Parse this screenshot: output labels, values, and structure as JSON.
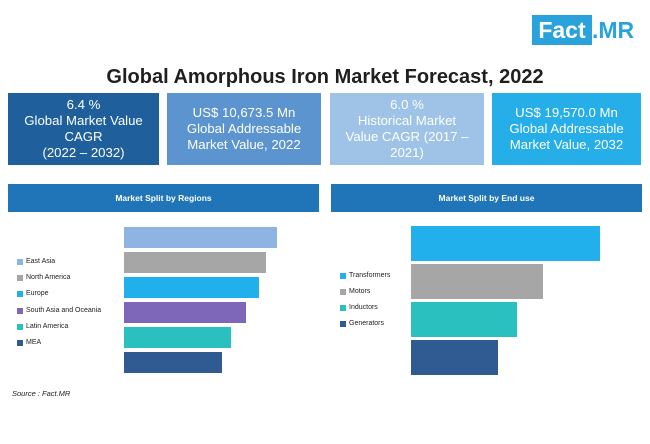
{
  "logo": {
    "part1": "Fact",
    "part2": ".MR"
  },
  "title": "Global Amorphous Iron Market Forecast, 2022",
  "kpis": [
    {
      "lines": [
        "6.4 %",
        "Global Market Value",
        "CAGR",
        "(2022 – 2032)"
      ]
    },
    {
      "lines": [
        "US$ 10,673.5  Mn",
        "Global Addressable",
        "Market Value, 2022"
      ]
    },
    {
      "lines": [
        "6.0 %",
        "Historical Market",
        "Value CAGR (2017 –",
        "2021)"
      ]
    },
    {
      "lines": [
        "US$ 19,570.0 Mn",
        "Global Addressable",
        "Market Value, 2032"
      ]
    }
  ],
  "source": "Source : Fact.MR",
  "chart_data": [
    {
      "type": "bar",
      "orientation": "horizontal",
      "title": "Market Split by Regions",
      "categories": [
        "East Asia",
        "North America",
        "Europe",
        "South Asia and Oceania",
        "Latin America",
        "MEA"
      ],
      "values": [
        100,
        93,
        88,
        80,
        70,
        64
      ],
      "colors": [
        "#8eb4e3",
        "#a6a6a6",
        "#22b0ed",
        "#7e66b9",
        "#2bc0c0",
        "#2f5b92"
      ],
      "legend": "left"
    },
    {
      "type": "bar",
      "orientation": "horizontal",
      "title": "Market Split by End use",
      "categories": [
        "Transformers",
        "Motors",
        "Inductors",
        "Generators"
      ],
      "values": [
        100,
        70,
        56,
        46
      ],
      "colors": [
        "#22b0ed",
        "#a6a6a6",
        "#2bc0c0",
        "#2f5b92"
      ],
      "legend": "left"
    }
  ]
}
